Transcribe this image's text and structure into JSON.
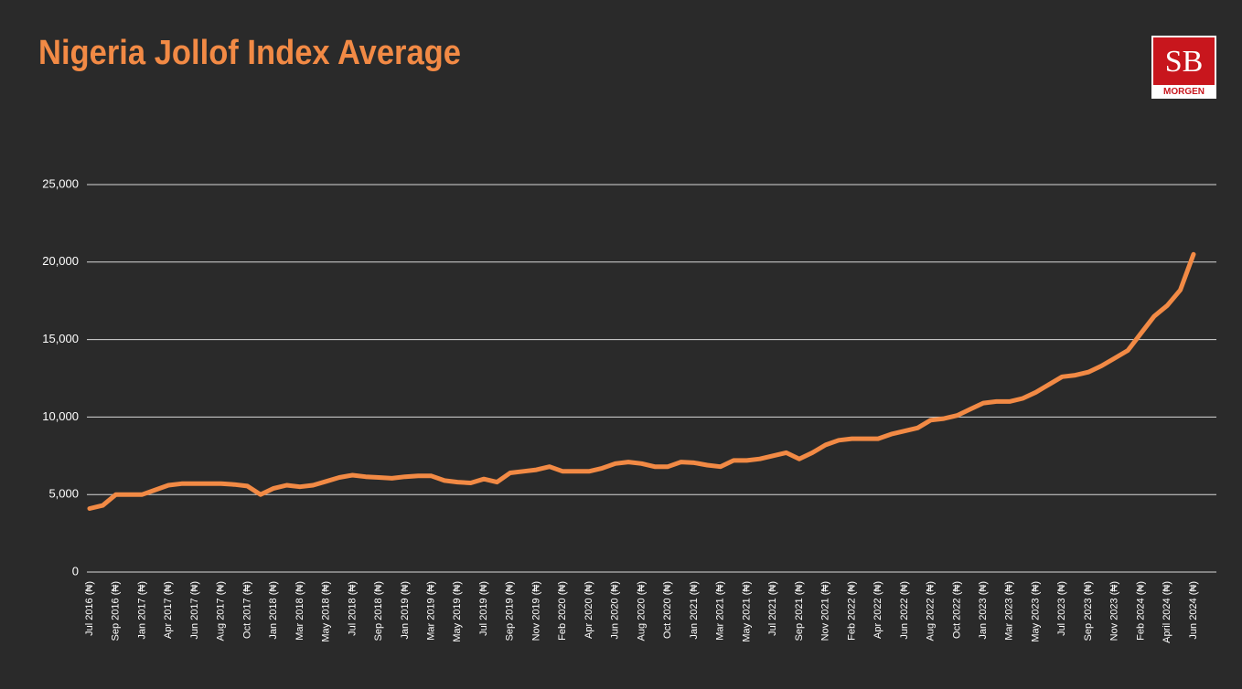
{
  "chart_data": {
    "type": "line",
    "title": "Nigeria Jollof Index Average",
    "logo": {
      "mark": "SB",
      "name": "MORGEN"
    },
    "categories": [
      "Jul 2016 (₦)",
      null,
      "Sep 2016 (₦)",
      null,
      "Jan 2017 (₦)",
      null,
      "Apr 2017 (₦)",
      null,
      "Jun 2017 (₦)",
      null,
      "Aug 2017 (₦)",
      null,
      "Oct 2017 (₦)",
      null,
      "Jan 2018 (₦)",
      null,
      "Mar 2018 (₦)",
      null,
      "May 2018 (₦)",
      null,
      "Jul 2018 (₦)",
      null,
      "Sep 2018 (₦)",
      null,
      "Jan 2019 (₦)",
      null,
      "Mar 2019 (₦)",
      null,
      "May 2019 (₦)",
      null,
      "Jul 2019 (₦)",
      null,
      "Sep 2019 (₦)",
      null,
      "Nov 2019 (₦)",
      null,
      "Feb 2020 (₦)",
      null,
      "Apr 2020 (₦)",
      null,
      "Jun 2020 (₦)",
      null,
      "Aug 2020 (₦)",
      null,
      "Oct 2020 (₦)",
      null,
      "Jan 2021 (₦)",
      null,
      "Mar 2021 (₦)",
      null,
      "May 2021 (₦)",
      null,
      "Jul 2021 (₦)",
      null,
      "Sep 2021 (₦)",
      null,
      "Nov 2021 (₦)",
      null,
      "Feb 2022 (₦)",
      null,
      "Apr 2022 (₦)",
      null,
      "Jun 2022 (₦)",
      null,
      "Aug 2022 (₦)",
      null,
      "Oct 2022 (₦)",
      null,
      "Jan 2023 (₦)",
      null,
      "Mar 2023 (₦)",
      null,
      "May 2023 (₦)",
      null,
      "Jul 2023 (₦)",
      null,
      "Sep 2023 (₦)",
      null,
      "Nov 2023 (₦)",
      null,
      "Feb 2024 (₦)",
      null,
      "April 2024 (₦)",
      null,
      "Jun 2024 (₦)"
    ],
    "values": [
      4100,
      4300,
      5000,
      5000,
      5000,
      5300,
      5600,
      5700,
      5700,
      5700,
      5700,
      5650,
      5550,
      5000,
      5400,
      5600,
      5500,
      5600,
      5850,
      6100,
      6250,
      6150,
      6100,
      6050,
      6150,
      6200,
      6200,
      5900,
      5800,
      5750,
      6000,
      5800,
      6400,
      6500,
      6600,
      6800,
      6500,
      6500,
      6500,
      6700,
      7000,
      7100,
      7000,
      6800,
      6800,
      7100,
      7050,
      6900,
      6800,
      7200,
      7200,
      7300,
      7500,
      7700,
      7300,
      7700,
      8200,
      8500,
      8600,
      8600,
      8600,
      8900,
      9100,
      9300,
      9800,
      9900,
      10100,
      10500,
      10900,
      11000,
      11000,
      11200,
      11600,
      12100,
      12600,
      12700,
      12900,
      13300,
      13800,
      14300,
      15400,
      16500,
      17200,
      18200,
      20500
    ],
    "color": "#f28a45",
    "ylim": [
      0,
      25000
    ],
    "yticks": [
      0,
      {
        "value": 5000,
        "label": "5,000"
      },
      {
        "value": 10000,
        "label": "10,000"
      },
      {
        "value": 15000,
        "label": "15,000"
      },
      {
        "value": 20000,
        "label": "20,000"
      },
      {
        "value": 25000,
        "label": "25,000"
      }
    ],
    "grid": true
  }
}
